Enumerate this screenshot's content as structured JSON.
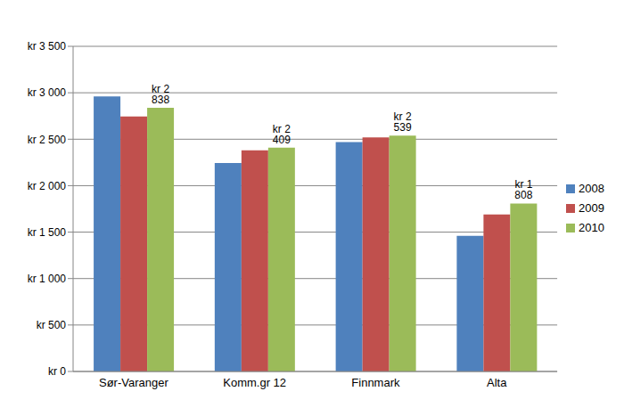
{
  "chart_data": {
    "type": "bar",
    "categories": [
      "Sør-Varanger",
      "Komm.gr 12",
      "Finnmark",
      "Alta"
    ],
    "series": [
      {
        "name": "2008",
        "color": "#4f81bd",
        "values": [
          2960,
          2245,
          2470,
          1460
        ]
      },
      {
        "name": "2009",
        "color": "#c0504d",
        "values": [
          2745,
          2380,
          2520,
          1690
        ]
      },
      {
        "name": "2010",
        "color": "#9bbb59",
        "values": [
          2838,
          2409,
          2539,
          1808
        ],
        "data_labels": true,
        "value_labels": [
          "kr 2 838",
          "kr 2 409",
          "kr 2 539",
          "kr 1 808"
        ]
      }
    ],
    "ylim": [
      0,
      3500
    ],
    "yticks": [
      {
        "value": 0,
        "label": "kr 0"
      },
      {
        "value": 500,
        "label": "kr 500"
      },
      {
        "value": 1000,
        "label": "kr 1 000"
      },
      {
        "value": 1500,
        "label": "kr 1 500"
      },
      {
        "value": 2000,
        "label": "kr 2 000"
      },
      {
        "value": 2500,
        "label": "kr 2 500"
      },
      {
        "value": 3000,
        "label": "kr 3 000"
      },
      {
        "value": 3500,
        "label": "kr 3 500"
      }
    ],
    "grid": true,
    "legend": "right"
  }
}
